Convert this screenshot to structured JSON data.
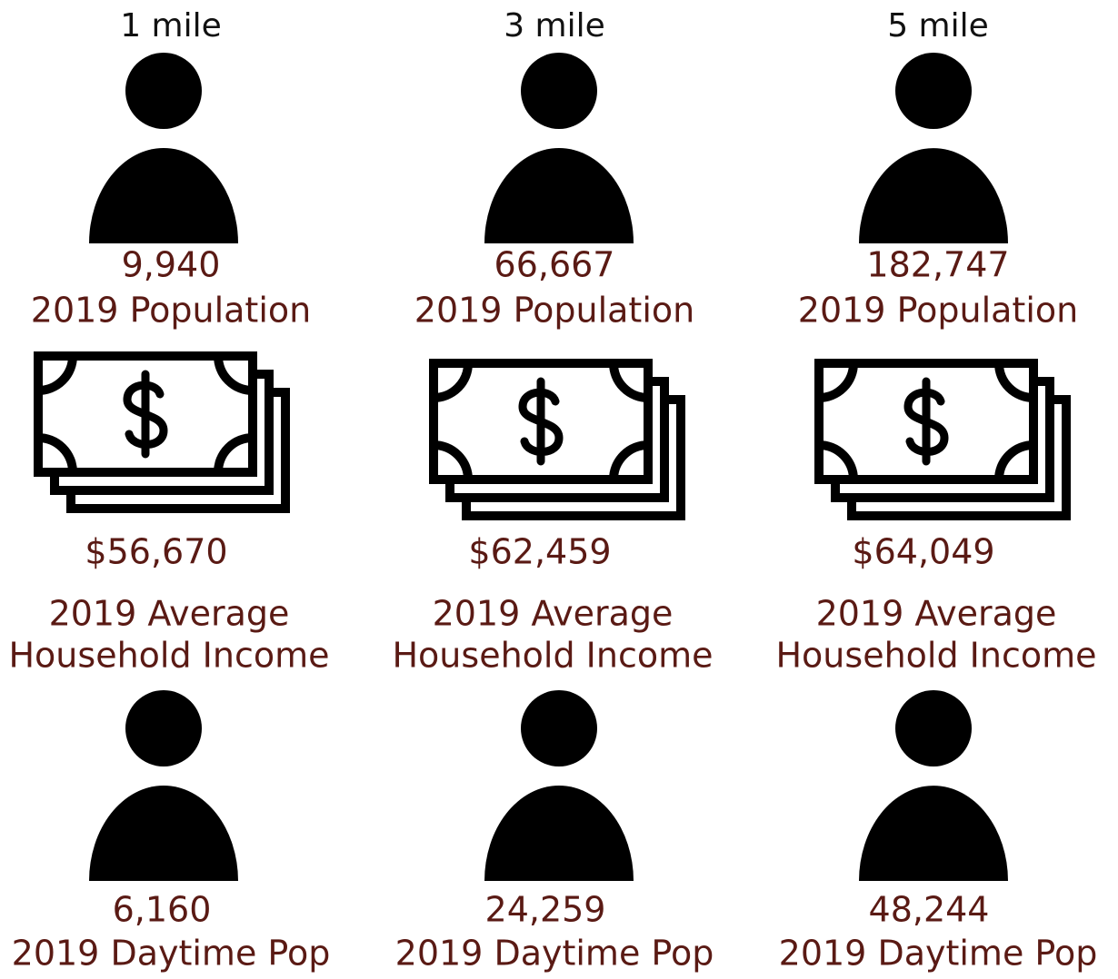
{
  "columns": [
    {
      "radius": "1 mile",
      "population": {
        "value": "9,940",
        "label": "2019 Population"
      },
      "income": {
        "value": "$56,670",
        "label_lines": [
          "2019 Average",
          "Household Income"
        ]
      },
      "daytime": {
        "value": "6,160",
        "label": "2019 Daytime Pop"
      }
    },
    {
      "radius": "3 mile",
      "population": {
        "value": "66,667",
        "label": "2019 Population"
      },
      "income": {
        "value": "$62,459",
        "label_lines": [
          "2019 Average",
          "Household Income"
        ]
      },
      "daytime": {
        "value": "24,259",
        "label": "2019 Daytime Pop"
      }
    },
    {
      "radius": "5 mile",
      "population": {
        "value": "182,747",
        "label": "2019 Population"
      },
      "income": {
        "value": "$64,049",
        "label_lines": [
          "2019 Average",
          "Household Income"
        ]
      },
      "daytime": {
        "value": "48,244",
        "label": "2019 Daytime Pop"
      }
    }
  ]
}
